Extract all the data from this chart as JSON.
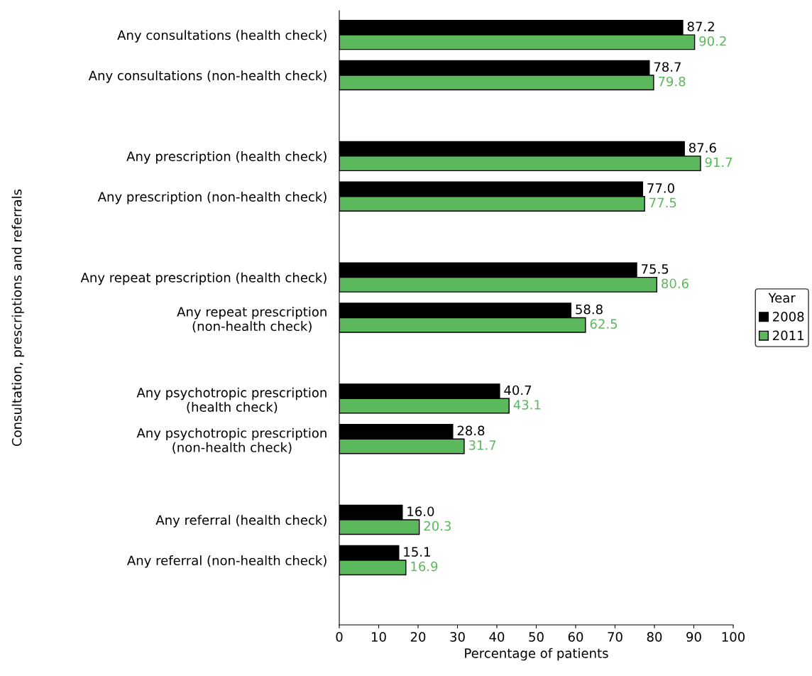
{
  "chart_data": {
    "type": "bar",
    "orientation": "horizontal",
    "xlabel": "Percentage of patients",
    "ylabel": "Consultation, prescriptions and referrals",
    "legend_title": "Year",
    "legend": "right",
    "categories": [
      "Any consultations (health check)",
      "Any consultations (non-health check)",
      "Any prescription (health check)",
      "Any prescription (non-health check)",
      "Any repeat prescription (health check)",
      "Any repeat prescription\n(non-health check)",
      "Any psychotropic prescription\n(health check)",
      "Any psychotropic prescription\n(non-health check)",
      "Any referral (health check)",
      "Any referral (non-health check)"
    ],
    "series": [
      {
        "name": "2008",
        "color": "#000000",
        "values": [
          87.2,
          78.7,
          87.6,
          77.0,
          75.5,
          58.8,
          40.7,
          28.8,
          16.0,
          15.1
        ],
        "value_labels": [
          "87.2",
          "78.7",
          "87.6",
          "77.0",
          "75.5",
          "58.8",
          "40.7",
          "28.8",
          "16.0",
          "15.1"
        ]
      },
      {
        "name": "2011",
        "color": "#5cb85c",
        "values": [
          90.2,
          79.8,
          91.7,
          77.5,
          80.6,
          62.5,
          43.1,
          31.7,
          20.3,
          16.9
        ],
        "value_labels": [
          "90.2",
          "79.8",
          "91.7",
          "77.5",
          "80.6",
          "62.5",
          "43.1",
          "31.7",
          "20.3",
          "16.9"
        ]
      }
    ],
    "xlim": [
      0,
      100
    ],
    "xticks": [
      0,
      10,
      20,
      30,
      40,
      50,
      60,
      70,
      80,
      90,
      100
    ],
    "grid": false
  }
}
